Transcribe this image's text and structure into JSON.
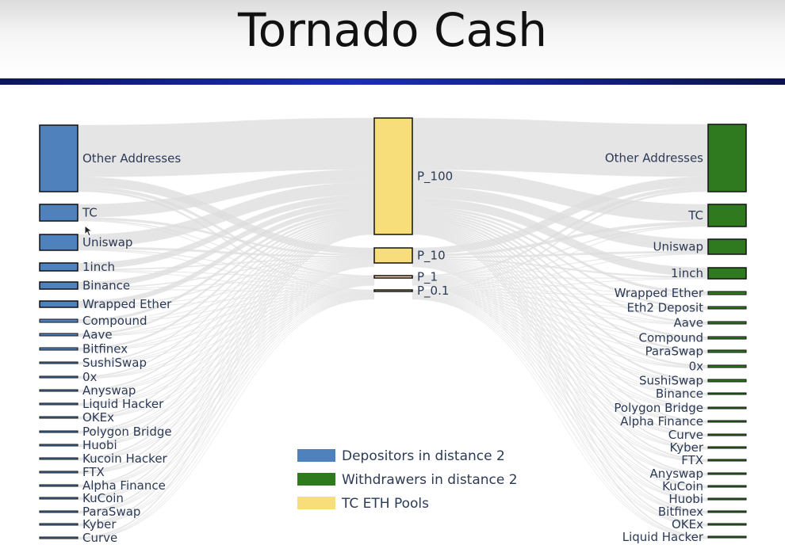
{
  "title": "Tornado Cash",
  "colors": {
    "depositors": "#4f81bd",
    "withdrawers": "#2f7a1f",
    "pools": "#f7de7a",
    "links": "#dcdcdc"
  },
  "depositors": [
    "Other Addresses",
    "TC",
    "Uniswap",
    "1inch",
    "Binance",
    "Wrapped Ether",
    "Compound",
    "Aave",
    "Bitfinex",
    "SushiSwap",
    "0x",
    "Anyswap",
    "Liquid Hacker",
    "OKEx",
    "Polygon Bridge",
    "Huobi",
    "Kucoin Hacker",
    "FTX",
    "Alpha Finance",
    "KuCoin",
    "ParaSwap",
    "Kyber",
    "Curve"
  ],
  "pools": [
    "P_100",
    "P_10",
    "P_1",
    "P_0.1"
  ],
  "withdrawers": [
    "Other Addresses",
    "TC",
    "Uniswap",
    "1inch",
    "Wrapped Ether",
    "Eth2 Deposit",
    "Aave",
    "Compound",
    "ParaSwap",
    "0x",
    "SushiSwap",
    "Binance",
    "Polygon Bridge",
    "Alpha Finance",
    "Curve",
    "Kyber",
    "FTX",
    "Anyswap",
    "KuCoin",
    "Huobi",
    "Bitfinex",
    "OKEx",
    "Liquid Hacker"
  ],
  "legend": [
    {
      "label": "Depositors in distance 2",
      "color": "#4f81bd"
    },
    {
      "label": "Withdrawers in distance 2",
      "color": "#2f7a1f"
    },
    {
      "label": "TC ETH Pools",
      "color": "#f7de7a"
    }
  ]
}
